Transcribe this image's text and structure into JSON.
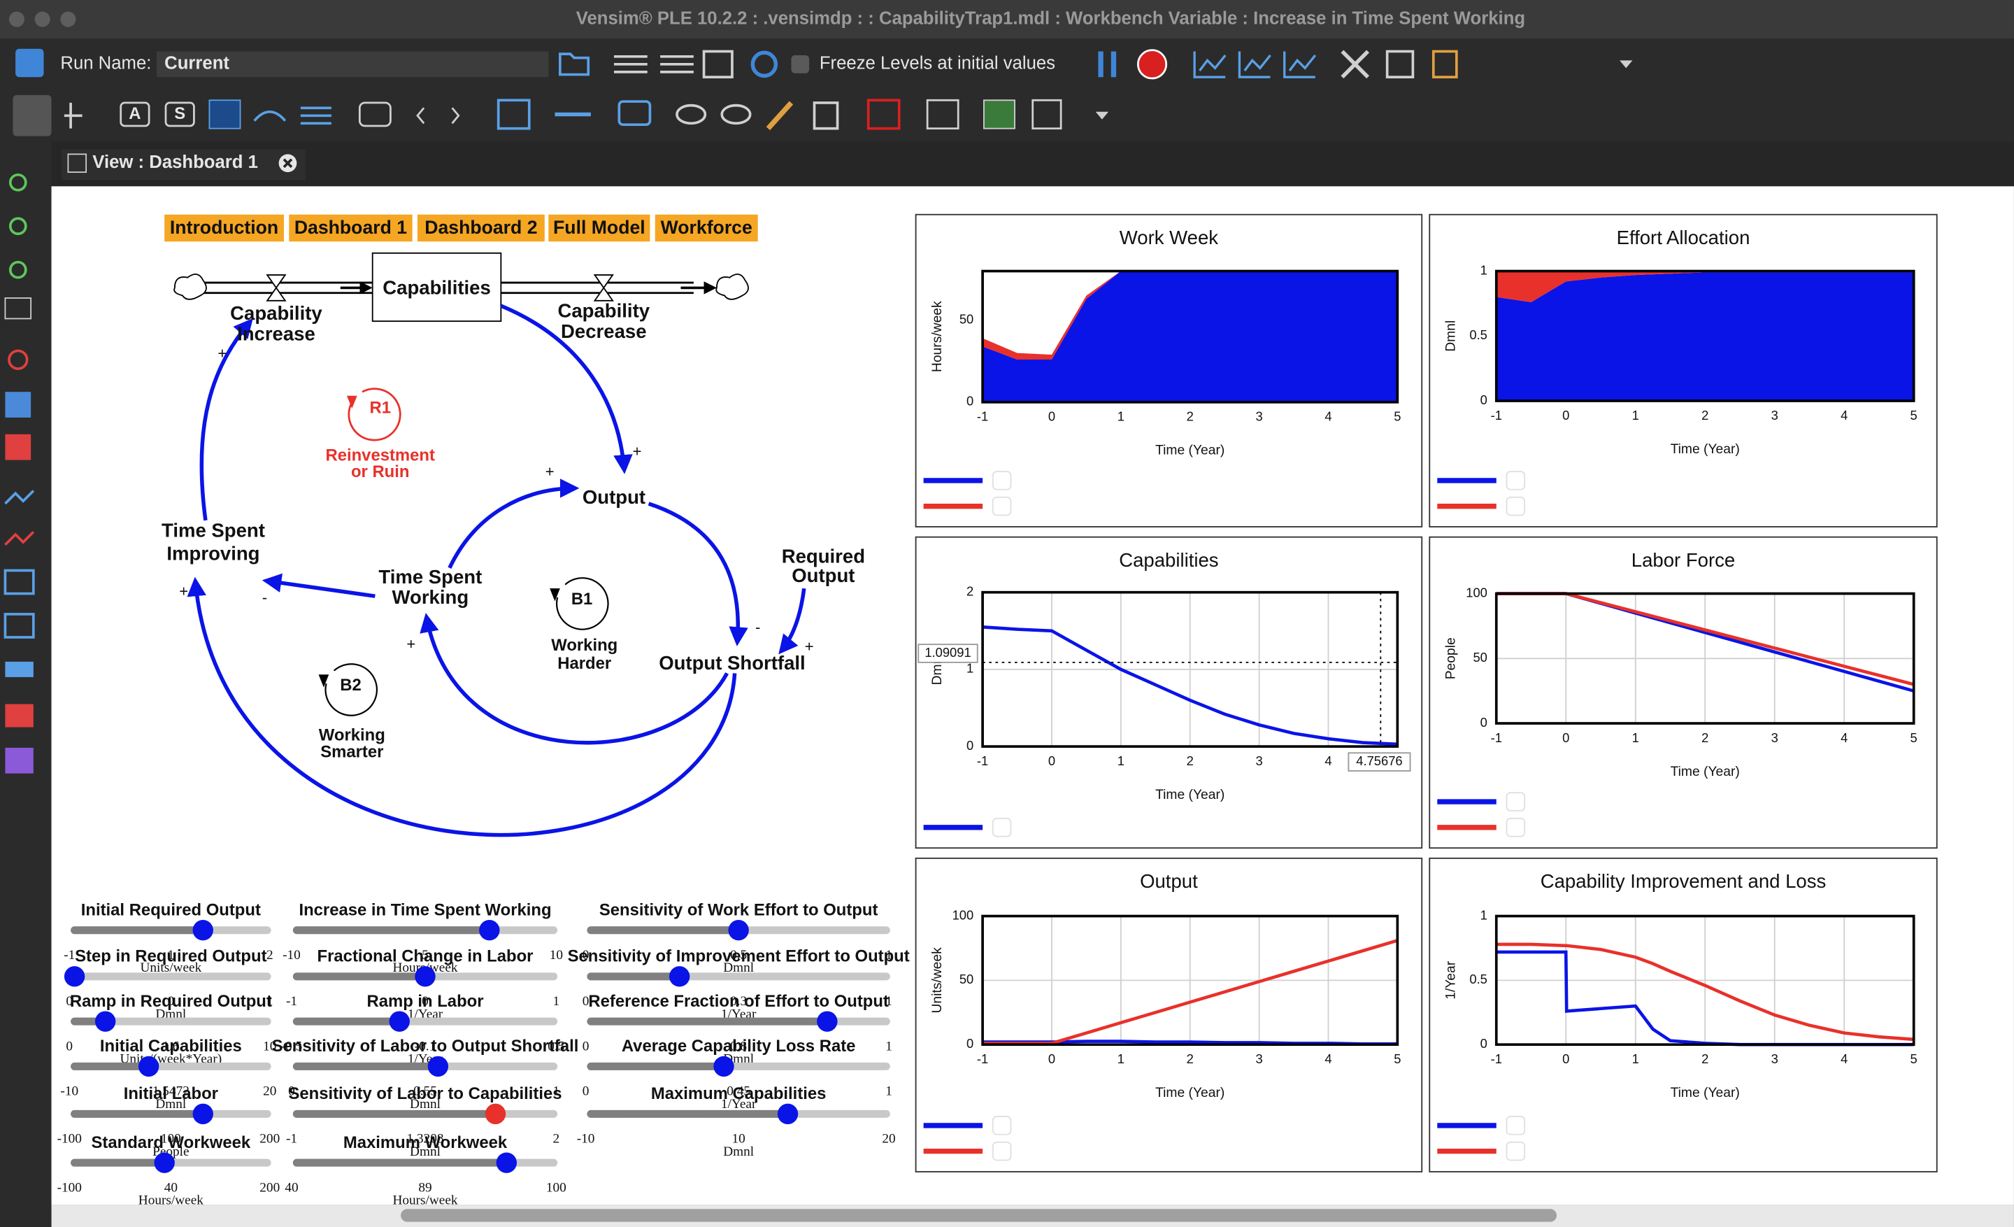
{
  "window": {
    "title": "Vensim® PLE 10.2.2 : .vensimdp :  : CapabilityTrap1.mdl : Workbench Variable : Increase in Time Spent Working"
  },
  "toolbar": {
    "run_name_label": "Run Name:",
    "run_name": "Current",
    "freeze_label": "Freeze Levels at initial values",
    "tool_letters": [
      "A",
      "S"
    ]
  },
  "tab": {
    "title": "View : Dashboard 1"
  },
  "nav": [
    "Introduction",
    "Dashboard 1",
    "Dashboard 2",
    "Full Model",
    "Workforce"
  ],
  "diagram": {
    "nodes": [
      [
        "Capabilities"
      ],
      [
        "Capability",
        "Increase"
      ],
      [
        "Capability",
        "Decrease"
      ],
      [
        "Output"
      ],
      [
        "Time Spent",
        "Improving"
      ],
      [
        "Time Spent",
        "Working"
      ],
      [
        "Required",
        "Output"
      ],
      [
        "Output Shortfall"
      ]
    ],
    "loops": [
      {
        "id": "R1",
        "lines": [
          "Reinvestment",
          "or Ruin"
        ]
      },
      {
        "id": "B1",
        "lines": [
          "Working",
          "Harder"
        ]
      },
      {
        "id": "B2",
        "lines": [
          "Working",
          "Smarter"
        ]
      }
    ],
    "signs": [
      "+",
      "+",
      "+",
      "-",
      "+",
      "+",
      "-",
      "+"
    ]
  },
  "sliders": [
    {
      "label": "Initial Required Output",
      "min": -1,
      "max": 2,
      "value": 1,
      "unit": "Units/week",
      "color": "#0a14e6"
    },
    {
      "label": "Step in Required Output",
      "min": 0,
      "max": 1,
      "value": 0,
      "unit": "Dmnl",
      "color": "#0a14e6"
    },
    {
      "label": "Ramp in Required Output",
      "min": 0,
      "max": 10,
      "value": 1.6,
      "unit": "Units/(week*Year)",
      "color": "#0a14e6"
    },
    {
      "label": "Initial Capabilities",
      "min": -10,
      "max": 20,
      "value": 1.5472,
      "unit": "Dmnl",
      "color": "#0a14e6"
    },
    {
      "label": "Initial Labor",
      "min": -100,
      "max": 200,
      "value": 100,
      "unit": "People",
      "color": "#0a14e6"
    },
    {
      "label": "Standard Workweek",
      "min": -100,
      "max": 200,
      "value": 40,
      "unit": "Hours/week",
      "color": "#0a14e6"
    },
    {
      "label": "Increase in Time Spent Working",
      "min": -10,
      "max": 10,
      "value": 5,
      "unit": "Hours/week",
      "color": "#0a14e6"
    },
    {
      "label": "Fractional Change in Labor",
      "min": -1,
      "max": 1,
      "value": 0,
      "unit": "1/Year",
      "color": "#0a14e6"
    },
    {
      "label": "Ramp in Labor",
      "min": -0.5,
      "max": 0.5,
      "value": -0.1,
      "unit": "1/Year",
      "color": "#0a14e6"
    },
    {
      "label": "Sensitivity of Labor to Output Shortfall",
      "min": 0,
      "max": 1,
      "value": 0.55,
      "unit": "Dmnl",
      "color": "#0a14e6"
    },
    {
      "label": "Sensitivity of Labor to Capabilities",
      "min": -1,
      "max": 2,
      "value": 1.3208,
      "unit": "Dmnl",
      "color": "#e8312a"
    },
    {
      "label": "Maximum Workweek",
      "min": 40,
      "max": 100,
      "value": 89,
      "unit": "Hours/week",
      "color": "#0a14e6"
    },
    {
      "label": "Sensitivity of Work Effort to Output",
      "min": 0,
      "max": 1,
      "value": 0.5,
      "unit": "Dmnl",
      "color": "#0a14e6"
    },
    {
      "label": "Sensitivity of Improvement Effort to Output",
      "min": 0,
      "max": 1,
      "value": 0.3,
      "unit": "1/Year",
      "color": "#0a14e6"
    },
    {
      "label": "Reference Fraction of Effort to Output",
      "min": 0,
      "max": 1,
      "value": 0.8,
      "unit": "Dmnl",
      "color": "#0a14e6"
    },
    {
      "label": "Average Capability Loss Rate",
      "min": 0,
      "max": 1,
      "value": 0.45,
      "unit": "1/Year",
      "color": "#0a14e6"
    },
    {
      "label": "Maximum Capabilities",
      "min": -10,
      "max": 20,
      "value": 10,
      "unit": "Dmnl",
      "color": "#0a14e6"
    }
  ],
  "chart_data": [
    {
      "type": "stacked_area",
      "title": "Work Week",
      "y_label": "Hours/week",
      "x_label": "Time (Year)",
      "x": [
        -1,
        -0.5,
        0,
        0.5,
        1,
        1.5,
        2,
        2.5,
        3,
        3.5,
        4,
        4.5,
        5
      ],
      "xlim": [
        -1,
        5
      ],
      "xticks": [
        -1,
        0,
        1,
        2,
        3,
        4,
        5
      ],
      "ylim": [
        0,
        80
      ],
      "yticks": [
        0,
        50
      ],
      "grid": false,
      "series": [
        {
          "color": "#0a14e6",
          "values": [
            34,
            26,
            26,
            63,
            80,
            80,
            80,
            80,
            80,
            80,
            80,
            80,
            80
          ]
        },
        {
          "color": "#e8312a",
          "values": [
            5,
            4,
            3,
            2,
            0,
            0,
            0,
            0,
            0,
            0,
            0,
            0,
            0
          ]
        }
      ]
    },
    {
      "type": "stacked_area",
      "title": "Effort Allocation",
      "y_label": "Dmnl",
      "x_label": "Time (Year)",
      "x": [
        -1,
        -0.5,
        0,
        0.5,
        1,
        1.5,
        2,
        2.5,
        3,
        3.5,
        4,
        4.5,
        5
      ],
      "xlim": [
        -1,
        5
      ],
      "xticks": [
        -1,
        0,
        1,
        2,
        3,
        4,
        5
      ],
      "ylim": [
        0,
        1
      ],
      "yticks": [
        0,
        0.5,
        1
      ],
      "grid": false,
      "series": [
        {
          "color": "#0a14e6",
          "values": [
            0.8,
            0.76,
            0.92,
            0.95,
            0.97,
            0.98,
            0.99,
            0.99,
            0.99,
            0.99,
            0.99,
            0.99,
            0.99
          ]
        },
        {
          "color": "#e8312a",
          "values": [
            0.2,
            0.24,
            0.08,
            0.05,
            0.03,
            0.02,
            0.01,
            0.01,
            0.01,
            0.01,
            0.01,
            0.01,
            0.01
          ]
        }
      ]
    },
    {
      "type": "line",
      "title": "Capabilities",
      "y_label": "Dmnl",
      "x_label": "Time (Year)",
      "x": [
        -1,
        -0.5,
        0,
        0.5,
        1,
        1.5,
        2,
        2.5,
        3,
        3.5,
        4,
        4.5,
        5
      ],
      "xlim": [
        -1,
        5
      ],
      "xticks": [
        -1,
        0,
        1,
        2,
        3,
        4,
        5
      ],
      "ylim": [
        0,
        2
      ],
      "yticks": [
        0,
        1,
        2
      ],
      "grid": true,
      "cursor_x": 4.75676,
      "cursor_y": 1.09091,
      "series": [
        {
          "color": "#0a14e6",
          "values": [
            1.55,
            1.52,
            1.5,
            1.25,
            1.0,
            0.8,
            0.6,
            0.42,
            0.28,
            0.17,
            0.1,
            0.05,
            0.03
          ]
        }
      ]
    },
    {
      "type": "line",
      "title": "Labor Force",
      "y_label": "People",
      "x_label": "Time (Year)",
      "x": [
        -1,
        -0.5,
        0,
        0.5,
        1,
        1.5,
        2,
        2.5,
        3,
        3.5,
        4,
        4.5,
        5
      ],
      "xlim": [
        -1,
        5
      ],
      "xticks": [
        -1,
        0,
        1,
        2,
        3,
        4,
        5
      ],
      "ylim": [
        0,
        100
      ],
      "yticks": [
        0,
        50,
        100
      ],
      "grid": true,
      "series": [
        {
          "color": "#0a14e6",
          "values": [
            100,
            100,
            100,
            92.5,
            85,
            77.5,
            70,
            62.5,
            55,
            47.5,
            40,
            32.5,
            25
          ]
        },
        {
          "color": "#e8312a",
          "values": [
            100,
            100,
            100,
            93,
            86,
            79,
            72,
            65,
            58,
            51,
            44,
            37,
            30
          ]
        }
      ]
    },
    {
      "type": "line",
      "title": "Output",
      "y_label": "Units/week",
      "x_label": "Time (Year)",
      "x": [
        -1,
        -0.5,
        0,
        0.5,
        1,
        1.5,
        2,
        2.5,
        3,
        3.5,
        4,
        4.5,
        5
      ],
      "xlim": [
        -1,
        5
      ],
      "xticks": [
        -1,
        0,
        1,
        2,
        3,
        4,
        5
      ],
      "ylim": [
        0,
        100
      ],
      "yticks": [
        0,
        50,
        100
      ],
      "grid": true,
      "series": [
        {
          "color": "#0a14e6",
          "values": [
            2,
            2,
            2,
            2.5,
            2.5,
            2,
            2,
            1.5,
            1.5,
            1,
            1,
            0.5,
            0.5
          ]
        },
        {
          "color": "#e8312a",
          "values": [
            1,
            1,
            1,
            9,
            17,
            25,
            33,
            41,
            49,
            57,
            65,
            73,
            81
          ]
        }
      ]
    },
    {
      "type": "line",
      "title": "Capability Improvement and Loss",
      "y_label": "1/Year",
      "x_label": "Time (Year)",
      "x": [
        -1,
        -0.5,
        0,
        0.01,
        0.5,
        1,
        1.25,
        1.5,
        2,
        2.5,
        3,
        3.5,
        4,
        4.5,
        5
      ],
      "xlim": [
        -1,
        5
      ],
      "xticks": [
        -1,
        0,
        1,
        2,
        3,
        4,
        5
      ],
      "ylim": [
        0,
        1
      ],
      "yticks": [
        0,
        0.5,
        1
      ],
      "grid": true,
      "series": [
        {
          "color": "#0a14e6",
          "values": [
            0.72,
            0.72,
            0.72,
            0.26,
            0.28,
            0.3,
            0.12,
            0.03,
            0.01,
            0,
            0,
            0,
            0,
            0,
            0
          ]
        },
        {
          "color": "#e8312a",
          "values": [
            0.78,
            0.78,
            0.77,
            0.77,
            0.74,
            0.68,
            0.63,
            0.57,
            0.46,
            0.34,
            0.23,
            0.15,
            0.09,
            0.06,
            0.04
          ]
        }
      ]
    }
  ]
}
